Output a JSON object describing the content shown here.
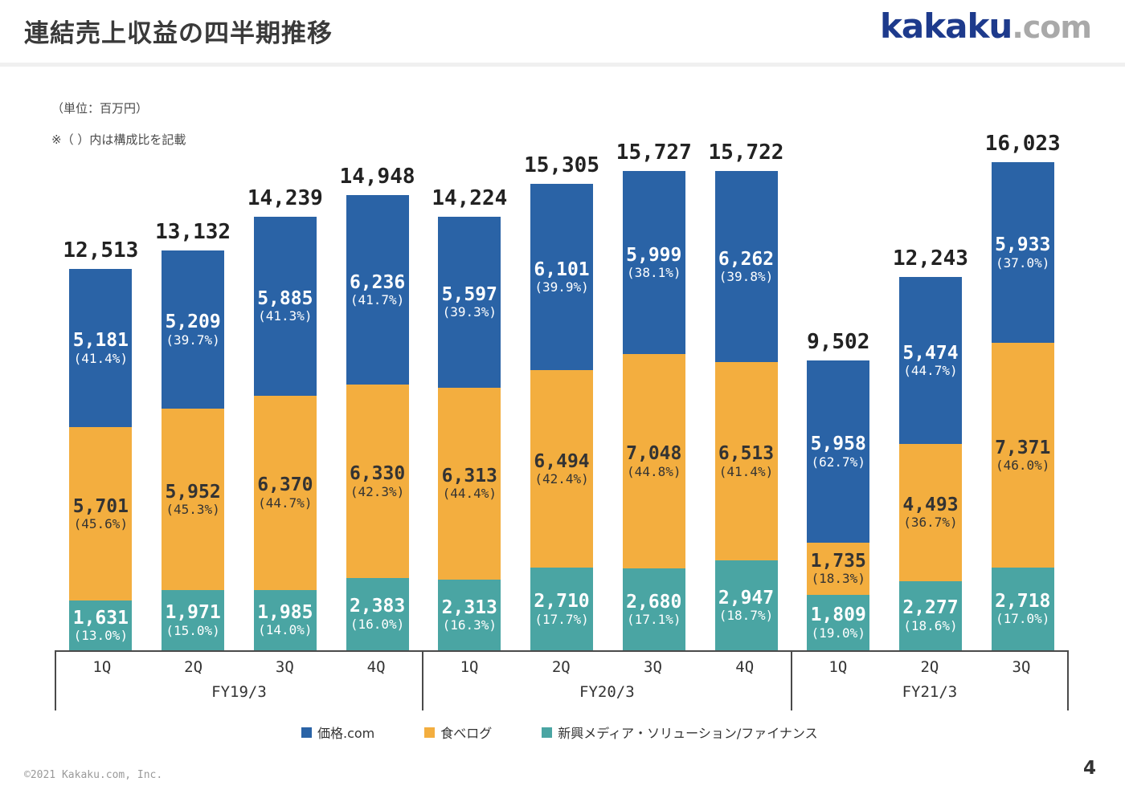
{
  "header": {
    "title": "連結売上収益の四半期推移",
    "logo": {
      "primary": "kakaku",
      "secondary": ".com"
    }
  },
  "notes": {
    "unit": "（単位：百万円）",
    "composition": "※（ ）内は構成比を記載"
  },
  "chart_data": {
    "type": "bar",
    "stacked": true,
    "title": "連結売上収益の四半期推移",
    "unit": "百万円",
    "legend_position": "bottom",
    "grid": false,
    "ylim": [
      0,
      16023
    ],
    "groups": [
      {
        "label": "FY19/3",
        "quarters": [
          "1Q",
          "2Q",
          "3Q",
          "4Q"
        ]
      },
      {
        "label": "FY20/3",
        "quarters": [
          "1Q",
          "2Q",
          "3Q",
          "4Q"
        ]
      },
      {
        "label": "FY21/3",
        "quarters": [
          "1Q",
          "2Q",
          "3Q"
        ]
      }
    ],
    "totals": [
      12513,
      13132,
      14239,
      14948,
      14224,
      15305,
      15727,
      15722,
      9502,
      12243,
      16023
    ],
    "series": [
      {
        "name": "価格.com",
        "color": "#2A63A6",
        "label_color": "#FFFFFF",
        "stack_position": "top",
        "values": [
          5181,
          5209,
          5885,
          6236,
          5597,
          6101,
          5999,
          6262,
          5958,
          5474,
          5933
        ],
        "percents": [
          41.4,
          39.7,
          41.3,
          41.7,
          39.3,
          39.9,
          38.1,
          39.8,
          62.7,
          44.7,
          37.0
        ]
      },
      {
        "name": "食べログ",
        "color": "#F3AE3F",
        "label_color": "#333333",
        "stack_position": "middle",
        "values": [
          5701,
          5952,
          6370,
          6330,
          6313,
          6494,
          7048,
          6513,
          1735,
          4493,
          7371
        ],
        "percents": [
          45.6,
          45.3,
          44.7,
          42.3,
          44.4,
          42.4,
          44.8,
          41.4,
          18.3,
          36.7,
          46.0
        ]
      },
      {
        "name": "新興メディア・ソリューション/ファイナンス",
        "color": "#4AA5A3",
        "label_color": "#FFFFFF",
        "stack_position": "bottom",
        "values": [
          1631,
          1971,
          1985,
          2383,
          2313,
          2710,
          2680,
          2947,
          1809,
          2277,
          2718
        ],
        "percents": [
          13.0,
          15.0,
          14.0,
          16.0,
          16.3,
          17.7,
          17.1,
          18.7,
          19.0,
          18.6,
          17.0
        ]
      }
    ]
  },
  "footer": {
    "copyright": "©2021 Kakaku.com, Inc.",
    "page_number": "4"
  }
}
